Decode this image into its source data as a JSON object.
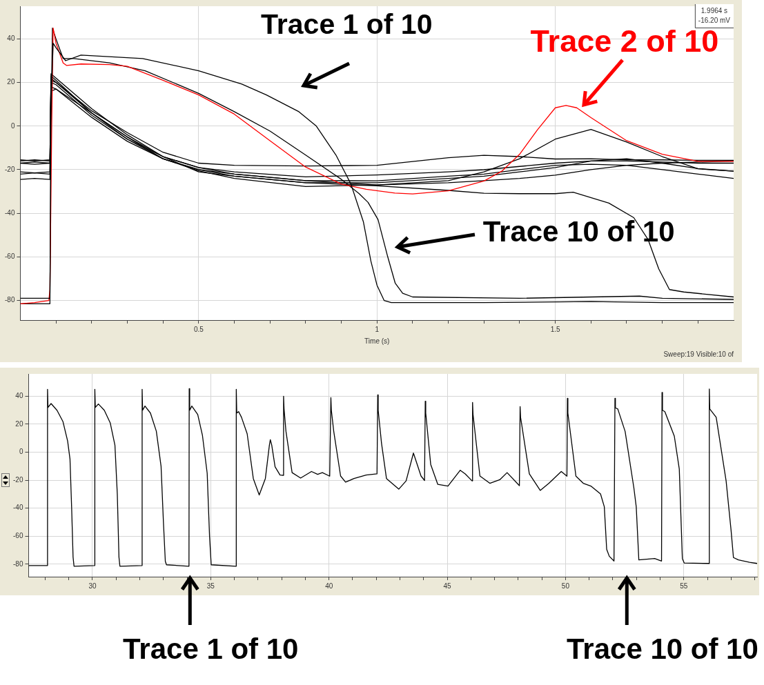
{
  "chart_data": [
    {
      "type": "line",
      "xlabel": "Time (s)",
      "xlim": [
        0,
        2
      ],
      "ylim": [
        -89,
        55
      ],
      "xticks": [
        {
          "value": 0.1,
          "label": null
        },
        {
          "value": 0.2,
          "label": null
        },
        {
          "value": 0.3,
          "label": null
        },
        {
          "value": 0.4,
          "label": null
        },
        0.5,
        {
          "value": 0.6,
          "label": null
        },
        {
          "value": 0.7,
          "label": null
        },
        {
          "value": 0.8,
          "label": null
        },
        {
          "value": 0.9,
          "label": null
        },
        1,
        {
          "value": 1.1,
          "label": null
        },
        {
          "value": 1.2,
          "label": null
        },
        {
          "value": 1.3,
          "label": null
        },
        {
          "value": 1.4,
          "label": null
        },
        1.5,
        {
          "value": 1.6,
          "label": null
        },
        {
          "value": 1.7,
          "label": null
        },
        {
          "value": 1.8,
          "label": null
        },
        {
          "value": 1.9,
          "label": null
        }
      ],
      "yticks": [
        -80,
        -60,
        -40,
        -20,
        0,
        20,
        40
      ],
      "grid": true,
      "marker": "none",
      "annotations": [
        "1.9964 s",
        "-16.20 mV",
        "Sweep:19 Visible:10 of"
      ],
      "series": [
        {
          "name": "Trace 1 of 10",
          "color": "#000000",
          "x": [
            0,
            0.04,
            0.083,
            0.086,
            0.092,
            0.1,
            0.127,
            0.17,
            0.343,
            0.5,
            0.621,
            0.69,
            0.781,
            0.83,
            0.885,
            0.927,
            0.962,
            0.983,
            1.0,
            1.02,
            1.04,
            1.3,
            1.6,
            1.8,
            2.0
          ],
          "values": [
            -79,
            -79,
            -79,
            10,
            38,
            36,
            30,
            32.6,
            31,
            25.4,
            19.3,
            14.3,
            6.6,
            0,
            -13.3,
            -26.6,
            -44,
            -62,
            -73,
            -80,
            -81,
            -81,
            -80.5,
            -81,
            -81
          ]
        },
        {
          "name": "Trace 2 of 10",
          "color": "#ff0000",
          "x": [
            0,
            0.04,
            0.08,
            0.083,
            0.088,
            0.092,
            0.1,
            0.12,
            0.13,
            0.17,
            0.25,
            0.3,
            0.4,
            0.5,
            0.6,
            0.7,
            0.8,
            0.9,
            0.97,
            1.05,
            1.1,
            1.2,
            1.3,
            1.35,
            1.4,
            1.45,
            1.5,
            1.53,
            1.56,
            1.6,
            1.7,
            1.8,
            1.9,
            2.0
          ],
          "values": [
            -81.5,
            -81,
            -80,
            -75,
            0,
            45,
            38,
            29,
            27.8,
            28.5,
            28.2,
            27.4,
            21,
            14.3,
            5.5,
            -6.7,
            -18.8,
            -26.6,
            -29,
            -30.7,
            -31.1,
            -29.7,
            -25.2,
            -20.7,
            -12.9,
            -1.7,
            8.4,
            9.5,
            8.4,
            3.9,
            -6.7,
            -12.9,
            -16.2,
            -16.2
          ]
        },
        {
          "color": "#000000",
          "x": [
            0,
            0.04,
            0.083,
            0.086,
            0.1,
            0.2,
            0.3,
            0.4,
            0.5,
            0.6,
            0.8,
            1.0,
            1.2,
            1.3,
            1.4,
            1.5,
            1.6,
            1.7,
            1.8,
            1.9,
            2.0
          ],
          "values": [
            -21,
            -21.5,
            -21,
            24,
            22,
            8,
            -4,
            -14,
            -19,
            -22,
            -25,
            -27,
            -25,
            -21,
            -15,
            -6,
            -1.5,
            -7.3,
            -14,
            -19.6,
            -20.7
          ]
        },
        {
          "color": "#000000",
          "x": [
            0,
            0.04,
            0.083,
            0.086,
            0.1,
            0.2,
            0.3,
            0.4,
            0.5,
            0.6,
            0.8,
            1.0,
            1.2,
            1.3,
            1.4,
            1.5,
            1.55,
            1.65,
            1.72,
            1.76,
            1.79,
            1.82,
            1.86,
            2.0
          ],
          "values": [
            -24.5,
            -24,
            -24.5,
            16,
            17,
            6,
            -6,
            -15,
            -20,
            -23,
            -26,
            -27.4,
            -29.5,
            -30.8,
            -31,
            -31,
            -30.3,
            -35.3,
            -42,
            -52,
            -65.5,
            -75,
            -76.1,
            -78.4
          ]
        },
        {
          "color": "#000000",
          "x": [
            0,
            0.04,
            0.083,
            0.086,
            0.1,
            0.2,
            0.3,
            0.4,
            0.5,
            0.6,
            0.8,
            1.0,
            1.2,
            1.3,
            1.4,
            1.5,
            1.6,
            1.7,
            1.8,
            1.9,
            2.0
          ],
          "values": [
            -16,
            -15.5,
            -16,
            22,
            20,
            7,
            -3,
            -12,
            -17,
            -18,
            -18.3,
            -18,
            -14.5,
            -13.4,
            -14,
            -15.1,
            -15,
            -15.5,
            -15.5,
            -15.7,
            -15.7
          ]
        },
        {
          "color": "#000000",
          "x": [
            0,
            0.04,
            0.083,
            0.086,
            0.1,
            0.2,
            0.3,
            0.4,
            0.5,
            0.6,
            0.8,
            1.0,
            1.2,
            1.3,
            1.4,
            1.5,
            1.6,
            1.7,
            1.8,
            1.9,
            2.0
          ],
          "values": [
            -17,
            -17.5,
            -17,
            20,
            19,
            5,
            -6,
            -14,
            -19,
            -21,
            -23.3,
            -22.4,
            -21,
            -20,
            -18.5,
            -17,
            -16,
            -16,
            -16.5,
            -17,
            -17
          ]
        },
        {
          "color": "#000000",
          "x": [
            0,
            0.04,
            0.083,
            0.086,
            0.1,
            0.2,
            0.3,
            0.4,
            0.5,
            0.6,
            0.8,
            1.0,
            1.2,
            1.3,
            1.4,
            1.5,
            1.6,
            1.7,
            1.8,
            1.9,
            2.0
          ],
          "values": [
            -15.5,
            -16,
            -15.5,
            23,
            21,
            6,
            -5,
            -15,
            -20,
            -22,
            -25,
            -25.1,
            -23,
            -22,
            -20,
            -18,
            -17.5,
            -18,
            -20,
            -22,
            -24
          ]
        },
        {
          "color": "#000000",
          "x": [
            0,
            0.04,
            0.083,
            0.086,
            0.1,
            0.2,
            0.3,
            0.4,
            0.5,
            0.6,
            0.8,
            1.0,
            1.2,
            1.3,
            1.4,
            1.5,
            1.6,
            1.7,
            1.8,
            1.9,
            2.0
          ],
          "values": [
            -22,
            -21.5,
            -22,
            18,
            17,
            4,
            -7,
            -15,
            -20.5,
            -24,
            -27.7,
            -27,
            -26,
            -25,
            -24,
            -22.5,
            -20,
            -18,
            -17,
            -16.5,
            -16
          ]
        },
        {
          "color": "#000000",
          "x": [
            0,
            0.04,
            0.083,
            0.086,
            0.1,
            0.2,
            0.3,
            0.4,
            0.5,
            0.6,
            0.8,
            1.0,
            1.2,
            1.3,
            1.4,
            1.5,
            1.6,
            1.7,
            1.8,
            1.9,
            2.0
          ],
          "values": [
            -17,
            -16.5,
            -17,
            21,
            20,
            6,
            -5,
            -14,
            -21,
            -23,
            -26,
            -26,
            -24,
            -23,
            -21,
            -19,
            -16,
            -15,
            -17,
            -19.5,
            -20.7
          ]
        },
        {
          "name": "Trace 10 of 10",
          "color": "#000000",
          "x": [
            0,
            0.04,
            0.083,
            0.086,
            0.09,
            0.1,
            0.12,
            0.15,
            0.25,
            0.35,
            0.5,
            0.6,
            0.7,
            0.8,
            0.9,
            0.95,
            0.975,
            1.003,
            1.03,
            1.051,
            1.072,
            1.1,
            1.4,
            1.736,
            1.8,
            2.0
          ],
          "values": [
            -81.5,
            -81.5,
            -81.5,
            0,
            45,
            40,
            31,
            31,
            29,
            25.4,
            15,
            6.6,
            -2.3,
            -13.3,
            -24.4,
            -31,
            -35,
            -42.9,
            -59.9,
            -72,
            -76.7,
            -78.4,
            -79,
            -78,
            -79,
            -79.5
          ]
        }
      ]
    },
    {
      "type": "line",
      "xlim": [
        27.3,
        58.1
      ],
      "ylim": [
        -89,
        56
      ],
      "xticks": [
        {
          "value": 28,
          "label": null
        },
        {
          "value": 29,
          "label": null
        },
        30,
        {
          "value": 31,
          "label": null
        },
        {
          "value": 32,
          "label": null
        },
        {
          "value": 33,
          "label": null
        },
        {
          "value": 34,
          "label": null
        },
        35,
        {
          "value": 36,
          "label": null
        },
        {
          "value": 37,
          "label": null
        },
        {
          "value": 38,
          "label": null
        },
        {
          "value": 39,
          "label": null
        },
        40,
        {
          "value": 41,
          "label": null
        },
        {
          "value": 42,
          "label": null
        },
        {
          "value": 43,
          "label": null
        },
        {
          "value": 44,
          "label": null
        },
        45,
        {
          "value": 46,
          "label": null
        },
        {
          "value": 47,
          "label": null
        },
        {
          "value": 48,
          "label": null
        },
        {
          "value": 49,
          "label": null
        },
        50,
        {
          "value": 51,
          "label": null
        },
        {
          "value": 52,
          "label": null
        },
        {
          "value": 53,
          "label": null
        },
        {
          "value": 54,
          "label": null
        },
        55,
        {
          "value": 56,
          "label": null
        },
        {
          "value": 57,
          "label": null
        },
        {
          "value": 58,
          "label": null
        }
      ],
      "yticks": [
        -80,
        -60,
        -40,
        -20,
        0,
        20,
        40
      ],
      "grid": true,
      "marker": "none",
      "annotations": [
        "Trace 1 of 10",
        "Trace 10 of 10"
      ],
      "series": [
        {
          "color": "#000000",
          "x": [
            27.3,
            28.09,
            28.1,
            28.12,
            28.25,
            28.5,
            28.75,
            28.95,
            29.05,
            29.12,
            29.18,
            29.22,
            30.09,
            30.1,
            30.12,
            30.25,
            30.5,
            30.75,
            30.95,
            31.05,
            31.12,
            31.16,
            32.09,
            32.1,
            32.12,
            32.22,
            32.45,
            32.7,
            32.9,
            33.0,
            33.08,
            33.13,
            34.08,
            34.09,
            34.11,
            34.2,
            34.45,
            34.65,
            34.85,
            34.95,
            35.02,
            36.07,
            36.08,
            36.1,
            36.18,
            36.3,
            36.54,
            36.8,
            37.05,
            37.31,
            37.48,
            37.52,
            37.58,
            37.72,
            37.93,
            38.06,
            38.08,
            38.1,
            38.18,
            38.44,
            38.8,
            39.26,
            39.52,
            39.72,
            40.03,
            40.08,
            40.1,
            40.2,
            40.49,
            40.7,
            41.06,
            41.57,
            42.03,
            42.06,
            42.08,
            42.22,
            42.43,
            42.95,
            43.26,
            43.57,
            43.89,
            44.04,
            44.07,
            44.09,
            44.3,
            44.6,
            45.03,
            45.55,
            45.76,
            46.05,
            46.07,
            46.09,
            46.38,
            46.8,
            47.22,
            47.53,
            48.05,
            48.08,
            48.1,
            48.47,
            48.93,
            49.3,
            49.82,
            50.06,
            50.08,
            50.1,
            50.44,
            50.75,
            51.07,
            51.48,
            51.64,
            51.74,
            51.85,
            52.05,
            52.09,
            52.11,
            52.21,
            52.52,
            52.89,
            52.99,
            53.1,
            53.77,
            54.06,
            54.08,
            54.1,
            54.2,
            54.6,
            54.81,
            54.94,
            55.02,
            56.06,
            56.08,
            56.1,
            56.37,
            56.79,
            57.0,
            57.1,
            57.31,
            57.78,
            58.1
          ],
          "values": [
            -81,
            -81,
            45,
            32,
            34.8,
            30,
            22,
            8,
            -5,
            -40,
            -75,
            -81.5,
            -81,
            45,
            32,
            34.5,
            30,
            21,
            5,
            -30,
            -75,
            -81.5,
            -81,
            45,
            30,
            33,
            28,
            15,
            -10,
            -50,
            -78,
            -80.5,
            -81.5,
            45.5,
            30,
            33,
            27,
            12,
            -15,
            -60,
            -80.5,
            -81.5,
            45,
            28,
            29,
            25,
            13.2,
            -18.8,
            -30.6,
            -18.8,
            5,
            9,
            5,
            -10.4,
            -16.3,
            -16.5,
            40,
            31,
            15,
            -14.6,
            -18.5,
            -13.8,
            -15.8,
            -14.6,
            -17.1,
            39,
            30,
            15,
            -17,
            -21.4,
            -18.8,
            -16.3,
            -15.5,
            41,
            30,
            6.5,
            -18.8,
            -26.4,
            -20.5,
            -0.6,
            -17,
            -20.2,
            36.5,
            28,
            -8.7,
            -23,
            -24.2,
            -12.9,
            -15.5,
            -20.5,
            35.6,
            27,
            -17,
            -22.2,
            -19.7,
            -14.6,
            -23.9,
            32.6,
            25,
            -15.5,
            -27.3,
            -22.2,
            -13.8,
            -17.1,
            38.5,
            28,
            -17.1,
            -22.2,
            -24.2,
            -29.8,
            -39,
            -69.4,
            -74.4,
            -77.8,
            38.5,
            31.7,
            30.9,
            14.9,
            -25.5,
            -39,
            -77,
            -76,
            -77.8,
            42.7,
            30,
            29,
            11.5,
            -12,
            -76,
            -79.2,
            -79.5,
            45.2,
            30.9,
            25,
            -20.5,
            -55.9,
            -75.3,
            -77,
            -78.7,
            -79.5
          ]
        }
      ]
    }
  ]
}
